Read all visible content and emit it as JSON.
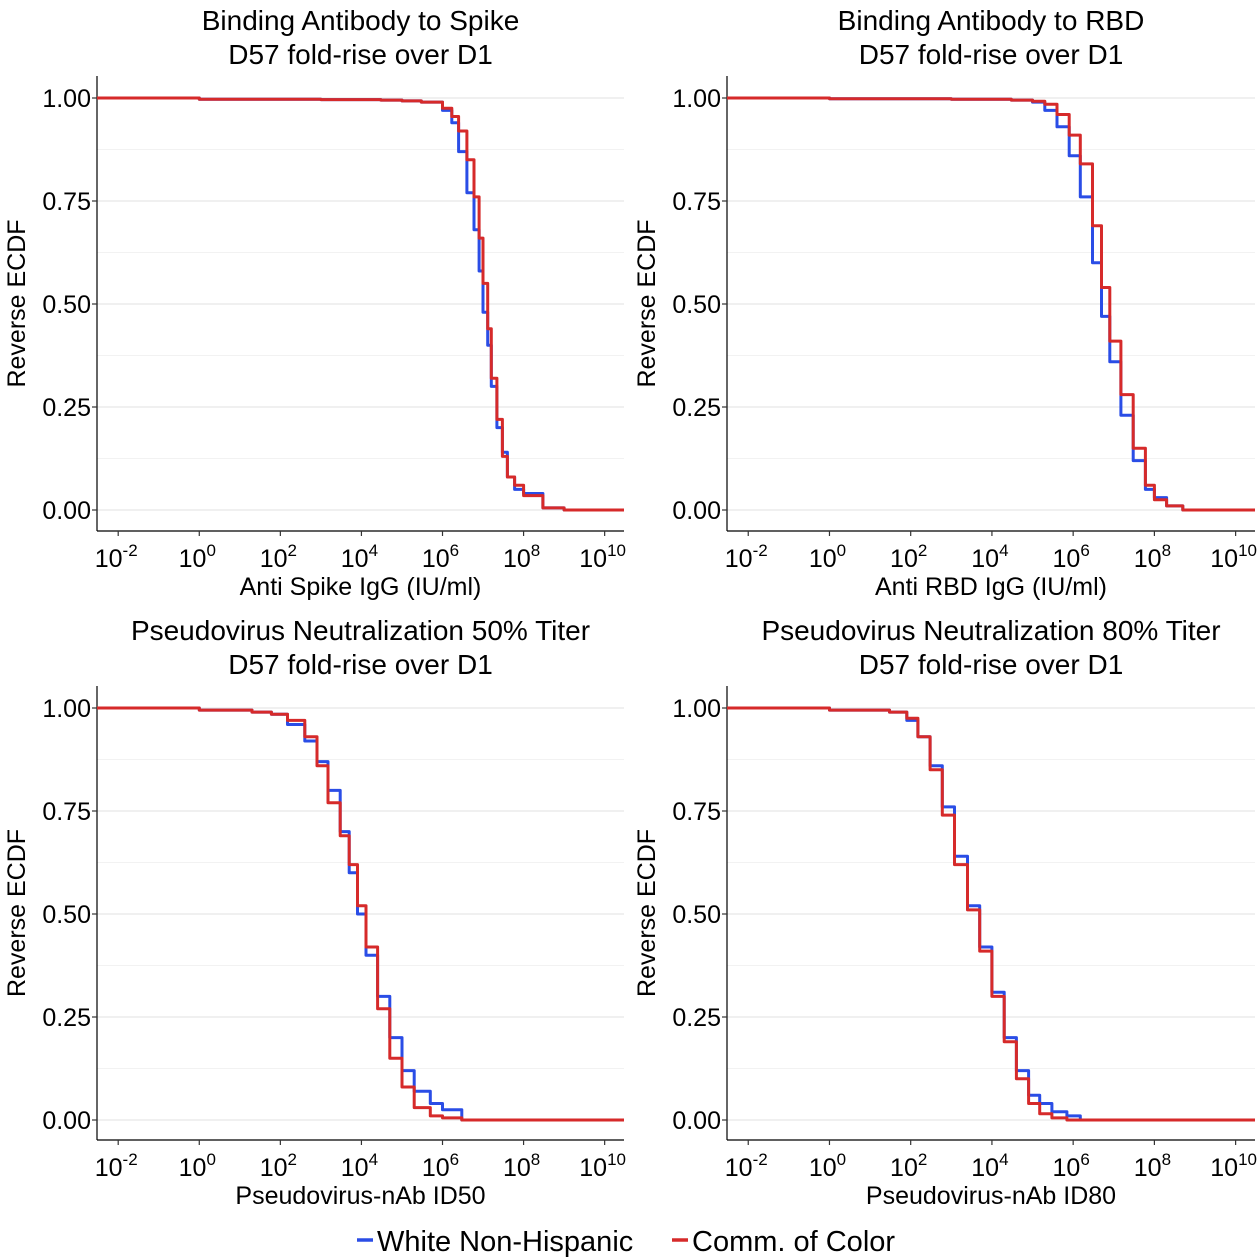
{
  "legend": {
    "items": [
      {
        "label": "White Non-Hispanic",
        "color": "#2a4de6"
      },
      {
        "label": "Comm. of Color",
        "color": "#d62a2a"
      }
    ]
  },
  "chart_data": [
    {
      "type": "line",
      "title": "Binding Antibody to Spike",
      "subtitle": "D57 fold-rise over D1",
      "xlabel": "Anti Spike IgG (IU/ml)",
      "ylabel": "Reverse ECDF",
      "xscale": "log10",
      "xlim": [
        0.003,
        30000000000
      ],
      "ylim": [
        0,
        1
      ],
      "xticks": [
        "10^-2",
        "10^0",
        "10^2",
        "10^4",
        "10^6",
        "10^8",
        "10^10"
      ],
      "yticks": [
        "0.00",
        "0.25",
        "0.50",
        "0.75",
        "1.00"
      ],
      "grid": "horizontal",
      "series": [
        {
          "name": "White Non-Hispanic",
          "color": "#2a4de6",
          "x": [
            0.003,
            1,
            1000,
            30000,
            100000,
            300000,
            1000000,
            1700000,
            2500000,
            4000000,
            6000000,
            8000000,
            10000000,
            13000000,
            16000000,
            22000000,
            30000000,
            40000000,
            60000000,
            100000000,
            300000000,
            1000000000,
            30000000000
          ],
          "y": [
            1.0,
            0.997,
            0.996,
            0.995,
            0.993,
            0.99,
            0.97,
            0.94,
            0.87,
            0.77,
            0.68,
            0.58,
            0.48,
            0.4,
            0.3,
            0.2,
            0.14,
            0.08,
            0.05,
            0.04,
            0.005,
            0.0,
            0.0
          ]
        },
        {
          "name": "Comm. of Color",
          "color": "#d62a2a",
          "x": [
            0.003,
            1,
            1000,
            30000,
            100000,
            300000,
            1000000,
            1700000,
            2500000,
            4000000,
            6000000,
            8000000,
            10000000,
            13000000,
            16000000,
            22000000,
            30000000,
            40000000,
            60000000,
            100000000,
            300000000,
            1000000000,
            30000000000
          ],
          "y": [
            1.0,
            0.997,
            0.996,
            0.995,
            0.993,
            0.99,
            0.975,
            0.955,
            0.92,
            0.85,
            0.76,
            0.66,
            0.55,
            0.44,
            0.32,
            0.22,
            0.13,
            0.08,
            0.06,
            0.035,
            0.005,
            0.0,
            0.0
          ]
        }
      ]
    },
    {
      "type": "line",
      "title": "Binding Antibody to RBD",
      "subtitle": "D57 fold-rise over D1",
      "xlabel": "Anti RBD IgG (IU/ml)",
      "ylabel": "Reverse ECDF",
      "xscale": "log10",
      "xlim": [
        0.003,
        30000000000
      ],
      "ylim": [
        0,
        1
      ],
      "xticks": [
        "10^-2",
        "10^0",
        "10^2",
        "10^4",
        "10^6",
        "10^8",
        "10^10"
      ],
      "yticks": [
        "0.00",
        "0.25",
        "0.50",
        "0.75",
        "1.00"
      ],
      "grid": "horizontal",
      "series": [
        {
          "name": "White Non-Hispanic",
          "color": "#2a4de6",
          "x": [
            0.003,
            1,
            1000,
            30000,
            100000,
            200000,
            400000,
            800000,
            1500000,
            3000000,
            5000000,
            8000000,
            15000000,
            30000000,
            60000000,
            100000000,
            200000000,
            500000000,
            30000000000
          ],
          "y": [
            1.0,
            0.998,
            0.997,
            0.995,
            0.99,
            0.97,
            0.93,
            0.86,
            0.76,
            0.6,
            0.47,
            0.36,
            0.23,
            0.12,
            0.05,
            0.03,
            0.01,
            0.0,
            0.0
          ]
        },
        {
          "name": "Comm. of Color",
          "color": "#d62a2a",
          "x": [
            0.003,
            1,
            1000,
            30000,
            100000,
            200000,
            400000,
            800000,
            1500000,
            3000000,
            5000000,
            8000000,
            15000000,
            30000000,
            60000000,
            100000000,
            200000000,
            500000000,
            30000000000
          ],
          "y": [
            1.0,
            0.998,
            0.997,
            0.995,
            0.992,
            0.985,
            0.96,
            0.91,
            0.84,
            0.69,
            0.54,
            0.41,
            0.28,
            0.15,
            0.06,
            0.025,
            0.01,
            0.0,
            0.0
          ]
        }
      ]
    },
    {
      "type": "line",
      "title": "Pseudovirus Neutralization 50% Titer",
      "subtitle": "D57 fold-rise over D1",
      "xlabel": "Pseudovirus-nAb ID50",
      "ylabel": "Reverse ECDF",
      "xscale": "log10",
      "xlim": [
        0.003,
        30000000000
      ],
      "ylim": [
        0,
        1
      ],
      "xticks": [
        "10^-2",
        "10^0",
        "10^2",
        "10^4",
        "10^6",
        "10^8",
        "10^10"
      ],
      "yticks": [
        "0.00",
        "0.25",
        "0.50",
        "0.75",
        "1.00"
      ],
      "grid": "horizontal",
      "series": [
        {
          "name": "White Non-Hispanic",
          "color": "#2a4de6",
          "x": [
            0.003,
            1,
            20,
            60,
            150,
            400,
            800,
            1500,
            3000,
            5000,
            8000,
            13000,
            25000,
            50000,
            100000,
            200000,
            500000,
            1000000,
            3000000,
            30000000000
          ],
          "y": [
            1.0,
            0.995,
            0.99,
            0.985,
            0.96,
            0.92,
            0.87,
            0.8,
            0.7,
            0.6,
            0.5,
            0.4,
            0.3,
            0.2,
            0.12,
            0.07,
            0.04,
            0.025,
            0.0,
            0.0
          ]
        },
        {
          "name": "Comm. of Color",
          "color": "#d62a2a",
          "x": [
            0.003,
            1,
            20,
            60,
            150,
            400,
            800,
            1500,
            3000,
            5000,
            8000,
            13000,
            25000,
            50000,
            100000,
            200000,
            500000,
            1000000,
            3000000,
            30000000000
          ],
          "y": [
            1.0,
            0.995,
            0.99,
            0.985,
            0.97,
            0.93,
            0.86,
            0.77,
            0.69,
            0.62,
            0.52,
            0.42,
            0.27,
            0.15,
            0.08,
            0.03,
            0.01,
            0.005,
            0.0,
            0.0
          ]
        }
      ]
    },
    {
      "type": "line",
      "title": "Pseudovirus Neutralization 80% Titer",
      "subtitle": "D57 fold-rise over D1",
      "xlabel": "Pseudovirus-nAb ID80",
      "ylabel": "Reverse ECDF",
      "xscale": "log10",
      "xlim": [
        0.003,
        30000000000
      ],
      "ylim": [
        0,
        1
      ],
      "xticks": [
        "10^-2",
        "10^0",
        "10^2",
        "10^4",
        "10^6",
        "10^8",
        "10^10"
      ],
      "yticks": [
        "0.00",
        "0.25",
        "0.50",
        "0.75",
        "1.00"
      ],
      "grid": "horizontal",
      "series": [
        {
          "name": "White Non-Hispanic",
          "color": "#2a4de6",
          "x": [
            0.003,
            1,
            30,
            80,
            150,
            300,
            600,
            1200,
            2500,
            5000,
            10000,
            20000,
            40000,
            80000,
            150000,
            300000,
            700000,
            1500000,
            30000000000
          ],
          "y": [
            1.0,
            0.995,
            0.99,
            0.97,
            0.93,
            0.86,
            0.76,
            0.64,
            0.52,
            0.42,
            0.31,
            0.2,
            0.12,
            0.06,
            0.04,
            0.02,
            0.01,
            0.0,
            0.0
          ]
        },
        {
          "name": "Comm. of Color",
          "color": "#d62a2a",
          "x": [
            0.003,
            1,
            30,
            80,
            150,
            300,
            600,
            1200,
            2500,
            5000,
            10000,
            20000,
            40000,
            80000,
            150000,
            300000,
            700000,
            1500000,
            30000000000
          ],
          "y": [
            1.0,
            0.995,
            0.99,
            0.975,
            0.93,
            0.85,
            0.74,
            0.62,
            0.51,
            0.41,
            0.3,
            0.19,
            0.1,
            0.04,
            0.015,
            0.005,
            0.0,
            0.0,
            0.0
          ]
        }
      ]
    }
  ]
}
